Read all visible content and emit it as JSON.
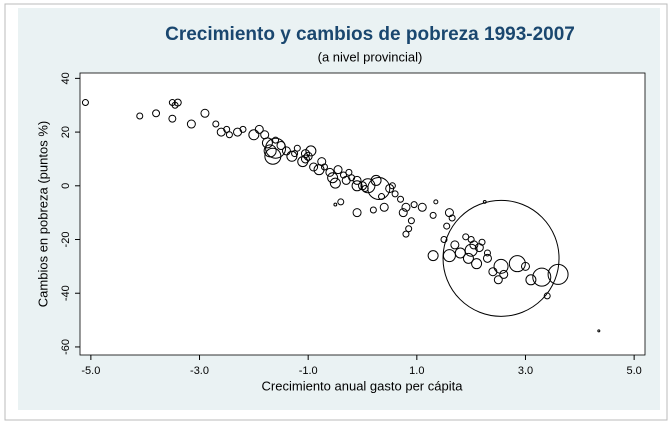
{
  "chart_data": {
    "type": "scatter",
    "title": "Crecimiento y cambios de pobreza 1993-2007",
    "subtitle": "(a nivel provincial)",
    "x_label": "Crecimiento anual gasto per cápita",
    "y_label": "Cambios en pobreza (puntos %)",
    "x": [
      -5.1,
      -4.1,
      -3.8,
      -3.5,
      -3.4,
      -3.45,
      -3.5,
      -3.15,
      -2.9,
      -2.7,
      -2.6,
      -2.5,
      -2.45,
      -2.3,
      -2.2,
      -2.0,
      -1.9,
      -1.8,
      -1.75,
      -1.7,
      -1.65,
      -1.6,
      -1.5,
      -1.4,
      -1.3,
      -1.25,
      -1.2,
      -1.1,
      -1.05,
      -1.0,
      -0.95,
      -0.9,
      -0.8,
      -0.75,
      -0.7,
      -0.6,
      -0.55,
      -0.5,
      -0.45,
      -0.35,
      -0.3,
      -0.25,
      -0.2,
      -0.1,
      0,
      0.05,
      0.1,
      0.25,
      0.3,
      0.35,
      0.5,
      0.55,
      0.6,
      0.7,
      0.4,
      0.2,
      -0.1,
      -0.4,
      0.75,
      0.8,
      0.9,
      0.85,
      0.95,
      1.1,
      0.8,
      1.3,
      1.6,
      1.65,
      1.55,
      1.7,
      1.9,
      2.0,
      1.5,
      1.3,
      1.6,
      1.8,
      2.05,
      1.95,
      2.2,
      2.15,
      2.3,
      2.4,
      2.5,
      2.55,
      2.55,
      2.85,
      3.0,
      3.1,
      3.3,
      3.6,
      3.4,
      2.6,
      2.1,
      2.0,
      2.3,
      4.35,
      2.25,
      1.35,
      -0.5,
      -1.6,
      -1.05,
      -0.1
    ],
    "values": [
      31,
      26,
      27,
      31,
      31,
      30,
      25,
      23,
      27,
      23,
      20,
      21,
      19,
      20,
      21,
      19,
      21,
      19,
      16,
      13,
      11,
      17,
      15,
      13,
      11,
      12,
      14,
      9,
      12,
      11,
      13,
      7,
      6,
      9,
      7,
      5,
      3,
      1,
      6,
      4,
      2,
      5,
      3,
      2,
      0,
      -1,
      0,
      2,
      -1,
      -4,
      -1,
      0,
      -3,
      -5,
      -8,
      -9,
      -10,
      -6,
      -10,
      -8,
      -13,
      -16,
      -7,
      -8,
      -18,
      -11,
      -10,
      -12,
      -15,
      -22,
      -19,
      -20,
      -20,
      -26,
      -26,
      -25,
      -22,
      -27,
      -21,
      -23,
      -27,
      -32,
      -35,
      -30,
      -27,
      -29,
      -30,
      -35,
      -34,
      -33,
      -41,
      -33,
      -29,
      -24,
      -25,
      -54,
      -6,
      -6,
      -7,
      14,
      10,
      0
    ],
    "sizes": [
      9,
      9,
      12,
      9,
      12,
      9,
      12,
      16,
      16,
      9,
      16,
      9,
      9,
      16,
      9,
      25,
      16,
      16,
      25,
      36,
      64,
      9,
      16,
      16,
      25,
      9,
      9,
      25,
      16,
      16,
      25,
      16,
      25,
      16,
      9,
      16,
      25,
      25,
      16,
      9,
      16,
      9,
      9,
      16,
      16,
      9,
      49,
      25,
      121,
      9,
      16,
      9,
      9,
      9,
      16,
      9,
      16,
      9,
      16,
      16,
      9,
      9,
      9,
      16,
      9,
      9,
      16,
      9,
      9,
      16,
      9,
      9,
      9,
      25,
      36,
      25,
      16,
      25,
      9,
      16,
      16,
      16,
      16,
      49,
      3364,
      64,
      16,
      25,
      81,
      100,
      9,
      16,
      25,
      36,
      9,
      1,
      2,
      4,
      2,
      100,
      16,
      25
    ],
    "color": "#000000",
    "xlim": [
      -5.2,
      5.2
    ],
    "ylim": [
      -63,
      42
    ],
    "xticks": [
      {
        "value": -5,
        "label": "-5.0"
      },
      {
        "value": -3,
        "label": "-3.0"
      },
      {
        "value": -1,
        "label": "-1.0"
      },
      {
        "value": 1,
        "label": "1.0"
      },
      {
        "value": 3,
        "label": "3.0"
      },
      {
        "value": 5,
        "label": "5.0"
      }
    ],
    "yticks": [
      40,
      20,
      0,
      -20,
      -40,
      -60
    ]
  }
}
